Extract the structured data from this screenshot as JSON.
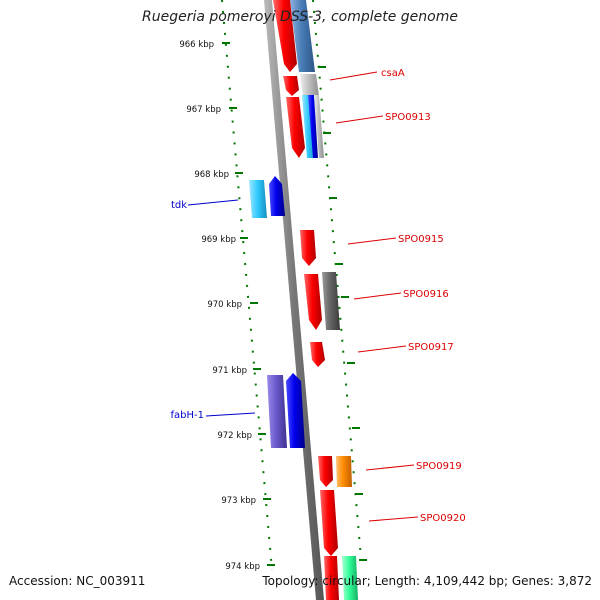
{
  "title": "Ruegeria pomeroyi DSS-3, complete genome",
  "accession": "Accession: NC_003911",
  "topology": "Topology: circular; Length: 4,109,442 bp; Genes: 3,872",
  "ticks": [
    "966 kbp",
    "967 kbp",
    "968 kbp",
    "969 kbp",
    "970 kbp",
    "971 kbp",
    "972 kbp",
    "973 kbp",
    "974 kbp"
  ],
  "labels": {
    "csaA": "csaA",
    "SPO0913": "SPO0913",
    "tdk": "tdk",
    "SPO0915": "SPO0915",
    "SPO0916": "SPO0916",
    "SPO0917": "SPO0917",
    "fabH1": "fabH-1",
    "SPO0919": "SPO0919",
    "SPO0920": "SPO0920"
  },
  "colors": {
    "cds_red": "#ff1a1a",
    "label_red": "#dd0000",
    "label_blue": "#0000cc",
    "blue": "#0000ee",
    "slate": "#6a5acd",
    "cyan": "#33ccff",
    "steel": "#4a7fb8",
    "gray": "#666666",
    "silver": "#c0c0c0",
    "orange": "#ff8c00",
    "teal": "#33ff99",
    "backbone": "#777777",
    "dots": "#007700"
  }
}
